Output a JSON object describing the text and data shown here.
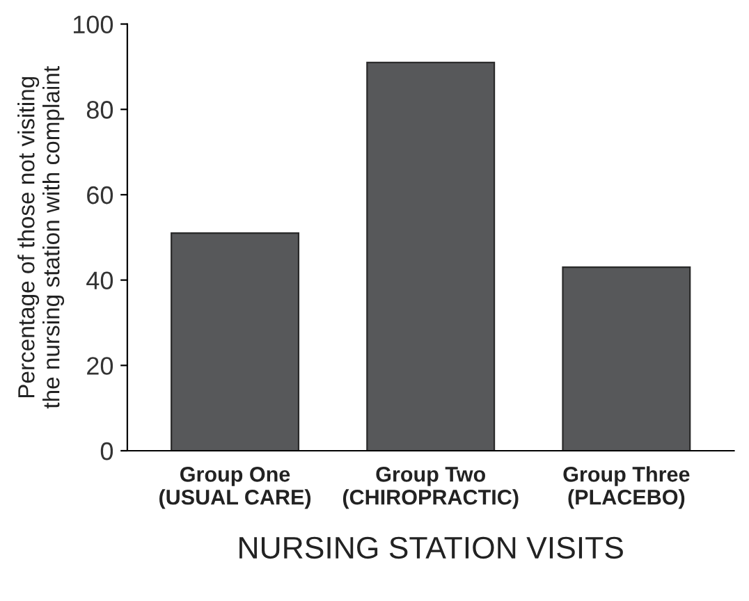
{
  "chart_data": {
    "type": "bar",
    "xlabel": "NURSING STATION VISITS",
    "ylabel": "Percentage of those not visiting\nthe nursing station with complaint",
    "categories": [
      "Group One\n(USUAL CARE)",
      "Group Two\n(CHIROPRACTIC)",
      "Group Three\n(PLACEBO)"
    ],
    "values": [
      51,
      91,
      43
    ],
    "color": "#57585a",
    "ylim": [
      0,
      100
    ],
    "yticks": [
      0,
      20,
      40,
      60,
      80,
      100
    ],
    "grid": false
  }
}
